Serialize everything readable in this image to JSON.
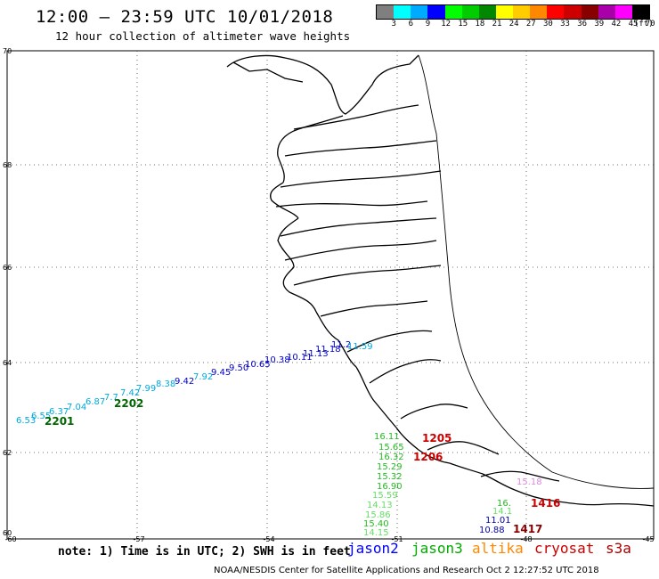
{
  "header": {
    "title": "12:00 – 23:59 UTC 10/01/2018",
    "subtitle": "12 hour collection of altimeter wave heights"
  },
  "color_scale": {
    "labels": [
      "3",
      "6",
      "9",
      "12",
      "15",
      "18",
      "21",
      "24",
      "27",
      "30",
      "33",
      "36",
      "39",
      "42",
      "45",
      "70"
    ],
    "unit": "(ft)",
    "colors": [
      "#7f7f7f",
      "#00ffff",
      "#00aaff",
      "#0000ff",
      "#00ff00",
      "#00cc00",
      "#008800",
      "#ffff00",
      "#ffcc00",
      "#ff8800",
      "#ff0000",
      "#cc0000",
      "#880000",
      "#aa00aa",
      "#ff00ff",
      "#000000"
    ]
  },
  "axes": {
    "lat_ticks": [
      "70",
      "68",
      "66",
      "64",
      "62",
      "60"
    ],
    "lon_ticks": [
      "-60",
      "-57",
      "-54",
      "-51",
      "-48",
      "-45"
    ]
  },
  "tracks": [
    {
      "satellite": "jason2",
      "color": "#0000cc",
      "labels": [
        "10.65",
        "10.38",
        "10.11",
        "11.13",
        "11.18",
        "11.2",
        "11.59"
      ]
    },
    {
      "satellite": "altika-cyan",
      "color": "#00aadd",
      "labels": [
        "6.53",
        "6.55",
        "6.37",
        "7.04",
        "6.87",
        "7.7",
        "7.42",
        "7.99",
        "8.38",
        "9.42",
        "7.92",
        "9.45",
        "9.50"
      ]
    },
    {
      "satellite": "jason3",
      "color": "#22bb22",
      "labels": [
        "16.11",
        "15.65",
        "16.32",
        "15.29",
        "15.32",
        "16.90",
        "15.59",
        "14.13",
        "15.86",
        "15.40",
        "14.15"
      ]
    },
    {
      "satellite": "jason2-b",
      "color": "#0000aa",
      "labels": [
        "11.01",
        "10.88"
      ]
    },
    {
      "satellite": "s3a",
      "color": "#dd88dd",
      "labels": [
        "15.18"
      ]
    },
    {
      "satellite": "jason3-b",
      "color": "#22bb22",
      "labels": [
        "16.",
        "14.1"
      ]
    }
  ],
  "times": [
    {
      "label": "2201",
      "color": "#006600"
    },
    {
      "label": "2202",
      "color": "#006600"
    },
    {
      "label": "1205",
      "color": "#cc0000"
    },
    {
      "label": "1206",
      "color": "#cc0000"
    },
    {
      "label": "1417",
      "color": "#880000"
    },
    {
      "label": "1416",
      "color": "#cc0000"
    }
  ],
  "note": "note: 1) Time is in UTC; 2) SWH is in feet",
  "satellites": [
    {
      "name": "jason2",
      "color": "#0000ff"
    },
    {
      "name": "jason3",
      "color": "#00aa00"
    },
    {
      "name": "altika",
      "color": "#ff8800"
    },
    {
      "name": "cryosat",
      "color": "#cc0000"
    },
    {
      "name": "s3a",
      "color": "#aa0000"
    }
  ],
  "footer": "NOAA/NESDIS Center for Satellite Applications and Research    Oct  2 12:27:52 UTC 2018"
}
